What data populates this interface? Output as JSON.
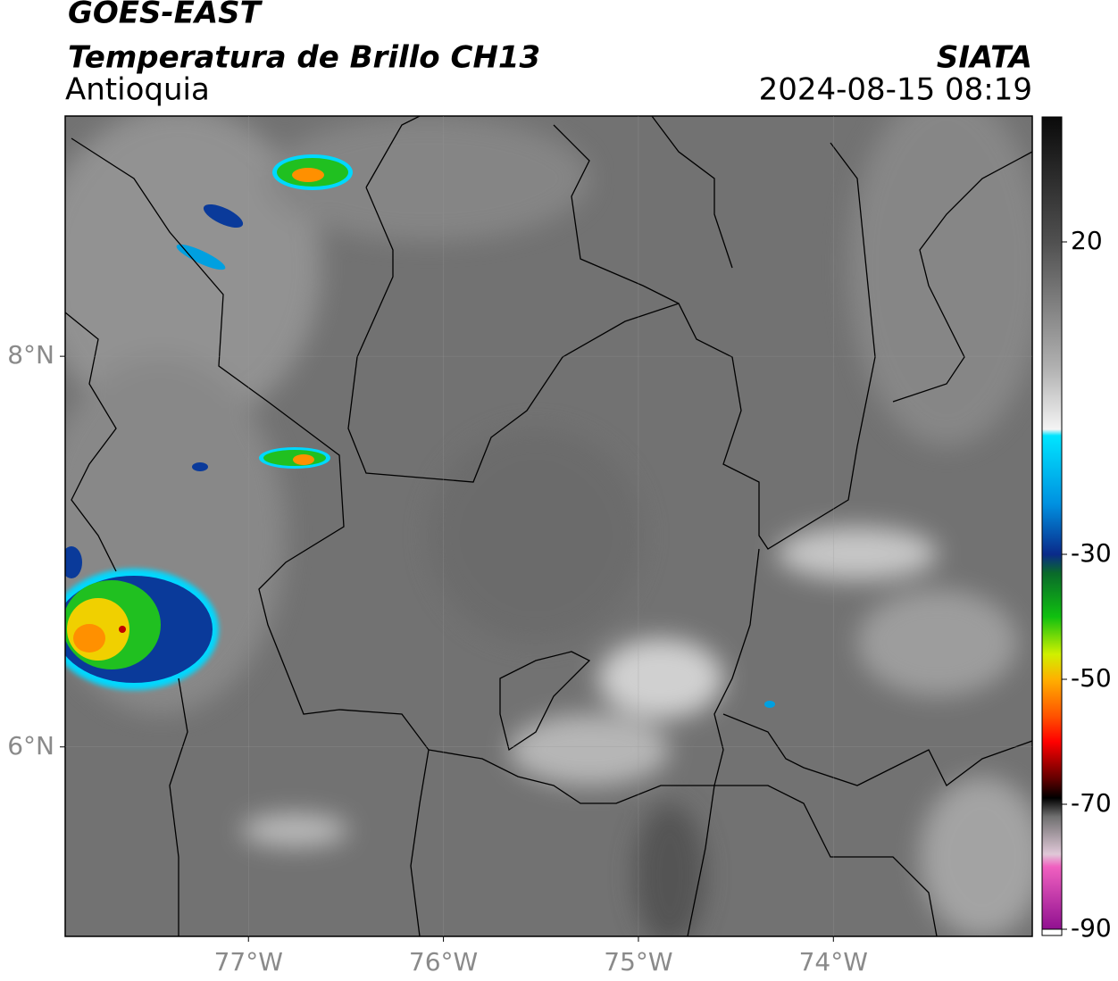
{
  "header": {
    "title": "GOES-EAST",
    "subtitle": "Temperatura de Brillo CH13",
    "region": "Antioquia",
    "source": "SIATA",
    "datetime": "2024-08-15 08:19"
  },
  "map": {
    "xlim": [
      -77.94,
      -72.98
    ],
    "ylim": [
      5.03,
      9.23
    ],
    "xticks": [
      {
        "value": -77,
        "label": "77°W"
      },
      {
        "value": -76,
        "label": "76°W"
      },
      {
        "value": -75,
        "label": "75°W"
      },
      {
        "value": -74,
        "label": "74°W"
      }
    ],
    "yticks": [
      {
        "value": 8,
        "label": "8°N"
      },
      {
        "value": 6,
        "label": "6°N"
      }
    ]
  },
  "colorbar": {
    "lim": [
      -91,
      40
    ],
    "ticks": [
      20,
      -30,
      -50,
      -70,
      -90
    ],
    "stops": [
      [
        40,
        "#0a0a0a"
      ],
      [
        20,
        "#505050"
      ],
      [
        0,
        "#b0b0b0"
      ],
      [
        -10,
        "#f4f4f4"
      ],
      [
        -11,
        "#00e5ff"
      ],
      [
        -22,
        "#0090e0"
      ],
      [
        -30,
        "#0a2a8a"
      ],
      [
        -33,
        "#0a6a2a"
      ],
      [
        -40,
        "#10c010"
      ],
      [
        -46,
        "#d0f000"
      ],
      [
        -50,
        "#ffb000"
      ],
      [
        -56,
        "#ff5000"
      ],
      [
        -60,
        "#ff0000"
      ],
      [
        -66,
        "#600000"
      ],
      [
        -69,
        "#000000"
      ],
      [
        -72,
        "#707070"
      ],
      [
        -78,
        "#e0c8d8"
      ],
      [
        -80,
        "#f060c0"
      ],
      [
        -90,
        "#901090"
      ]
    ]
  }
}
